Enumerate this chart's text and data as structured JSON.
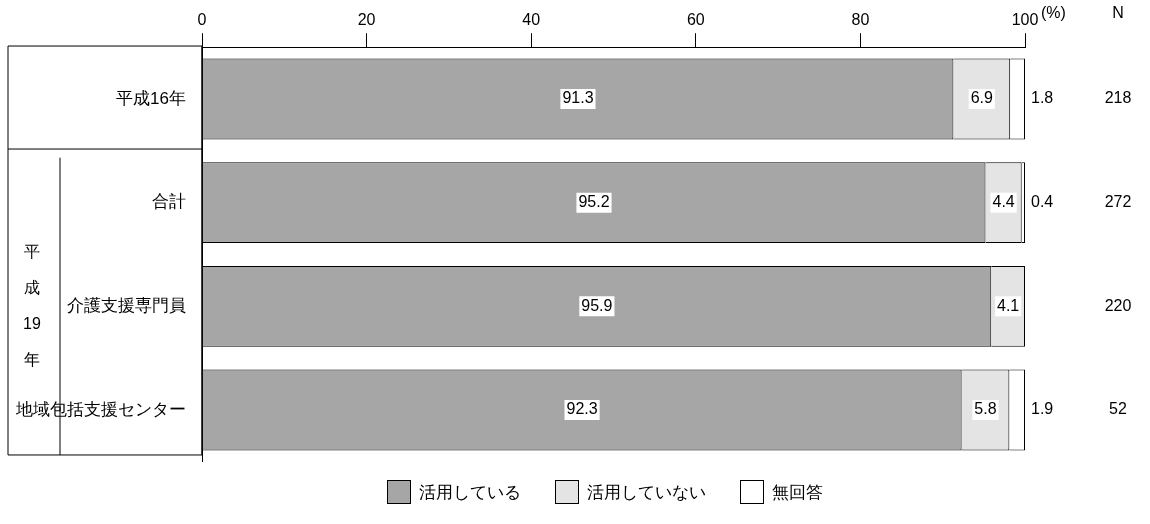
{
  "chart_data": {
    "type": "bar",
    "orientation": "horizontal",
    "stacked": true,
    "categories": [
      "平成16年",
      "合計",
      "介護支援専門員",
      "地域包括支援センター"
    ],
    "series": [
      {
        "name": "活用している",
        "color": "#a6a6a6",
        "values": [
          91.3,
          95.2,
          95.9,
          92.3
        ]
      },
      {
        "name": "活用していない",
        "color": "#e4e4e4",
        "values": [
          6.9,
          4.4,
          4.1,
          5.8
        ]
      },
      {
        "name": "無回答",
        "color": "#ffffff",
        "values": [
          1.8,
          0.4,
          null,
          1.9
        ]
      }
    ],
    "xlim": [
      0,
      100
    ],
    "xticks": [
      0,
      20,
      40,
      60,
      80,
      100
    ],
    "xlabel": "(%)",
    "data_labels": true,
    "grid": false,
    "legend": "bottom",
    "annotations": [
      "平成19年",
      "N",
      "218",
      "272",
      "220",
      "52"
    ]
  }
}
